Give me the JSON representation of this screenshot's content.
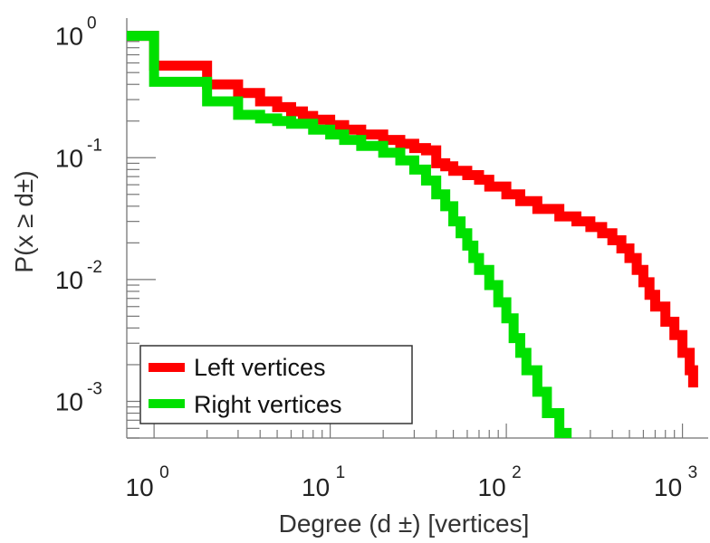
{
  "chart_data": {
    "type": "line",
    "xscale": "log",
    "yscale": "log",
    "xlim": [
      0.7,
      1400
    ],
    "ylim": [
      0.0005,
      1.4
    ],
    "xlabel": "Degree (d ±) [vertices]",
    "ylabel": "P(x ≥ d±)",
    "x_ticks": [
      {
        "base": "10",
        "exp": "0",
        "value": 1
      },
      {
        "base": "10",
        "exp": "1",
        "value": 10
      },
      {
        "base": "10",
        "exp": "2",
        "value": 100
      },
      {
        "base": "10",
        "exp": "3",
        "value": 1000
      }
    ],
    "y_ticks": [
      {
        "base": "10",
        "exp": "0",
        "value": 1
      },
      {
        "base": "10",
        "exp": "-1",
        "value": 0.1
      },
      {
        "base": "10",
        "exp": "-2",
        "value": 0.01
      },
      {
        "base": "10",
        "exp": "-3",
        "value": 0.001
      }
    ],
    "legend_position": "bottom-left",
    "series": [
      {
        "name": "Left vertices",
        "color": "#ff0000",
        "x": [
          0.7,
          1,
          2,
          3,
          4,
          5,
          6,
          7,
          8,
          10,
          12,
          15,
          20,
          25,
          30,
          35,
          40,
          45,
          50,
          60,
          70,
          80,
          100,
          120,
          150,
          200,
          250,
          300,
          350,
          400,
          450,
          500,
          550,
          600,
          650,
          700,
          800,
          900,
          1000,
          1100,
          1150
        ],
        "y": [
          1.0,
          0.57,
          0.4,
          0.34,
          0.29,
          0.26,
          0.24,
          0.22,
          0.205,
          0.185,
          0.17,
          0.155,
          0.14,
          0.13,
          0.12,
          0.115,
          0.09,
          0.085,
          0.078,
          0.072,
          0.066,
          0.058,
          0.05,
          0.044,
          0.038,
          0.033,
          0.03,
          0.027,
          0.024,
          0.021,
          0.018,
          0.015,
          0.012,
          0.0095,
          0.0075,
          0.006,
          0.0045,
          0.0035,
          0.0025,
          0.0018,
          0.0013
        ]
      },
      {
        "name": "Right vertices",
        "color": "#00e000",
        "x": [
          0.7,
          1,
          2,
          3,
          4,
          5,
          6,
          8,
          10,
          12,
          15,
          20,
          25,
          30,
          35,
          40,
          45,
          50,
          55,
          60,
          65,
          70,
          80,
          90,
          100,
          110,
          120,
          130,
          150,
          170,
          200,
          220
        ],
        "y": [
          1.0,
          0.42,
          0.29,
          0.225,
          0.21,
          0.2,
          0.19,
          0.17,
          0.155,
          0.14,
          0.125,
          0.11,
          0.095,
          0.08,
          0.065,
          0.05,
          0.04,
          0.03,
          0.024,
          0.019,
          0.015,
          0.012,
          0.009,
          0.0065,
          0.0048,
          0.0033,
          0.0025,
          0.0018,
          0.0012,
          0.0008,
          0.00055,
          0.0005
        ]
      }
    ]
  }
}
